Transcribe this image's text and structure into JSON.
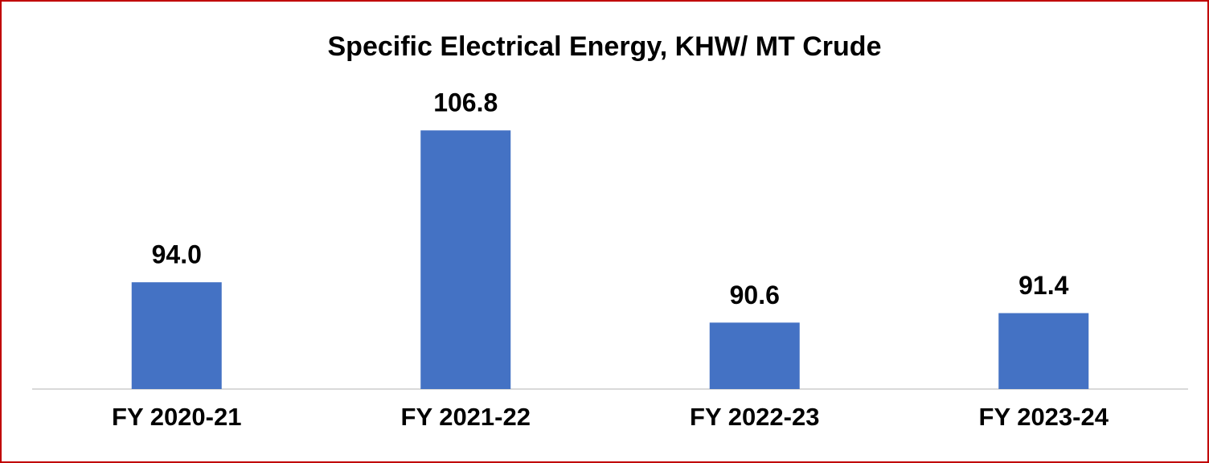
{
  "chart_data": {
    "type": "bar",
    "title": "Specific Electrical Energy, KHW/ MT Crude",
    "categories": [
      "FY 2020-21",
      "FY 2021-22",
      "FY 2022-23",
      "FY 2023-24"
    ],
    "values": [
      94.0,
      106.8,
      90.6,
      91.4
    ],
    "value_labels": [
      "94.0",
      "106.8",
      "90.6",
      "91.4"
    ],
    "color": "#4472c4",
    "ylim": [
      85,
      110
    ]
  }
}
